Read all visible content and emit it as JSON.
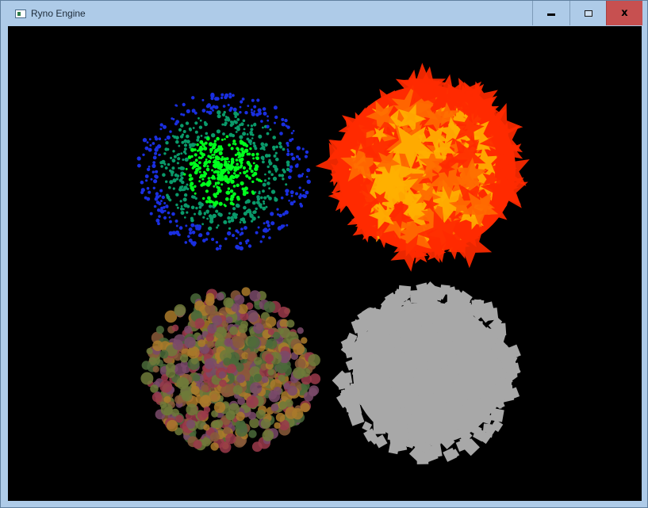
{
  "window": {
    "title": "Ryno Engine",
    "minimize_icon": "minimize-icon",
    "maximize_icon": "maximize-icon",
    "close_label": "x"
  },
  "scene": {
    "background": "#000000",
    "systems": [
      {
        "id": "dots",
        "shape": "dot",
        "colors": [
          "#00ff1e",
          "#0a9a6a",
          "#1a2fe0"
        ]
      },
      {
        "id": "stars",
        "shape": "star",
        "colors": [
          "#ff2a00",
          "#ff6a00",
          "#ffb000"
        ]
      },
      {
        "id": "circles",
        "shape": "circle",
        "colors": [
          "#6e7a3a",
          "#8a5a3a",
          "#4a6a3a",
          "#9a3a4a",
          "#7a4a6a",
          "#aa7a2a"
        ]
      },
      {
        "id": "squares",
        "shape": "square",
        "colors": [
          "#a8a8a8"
        ]
      }
    ]
  }
}
